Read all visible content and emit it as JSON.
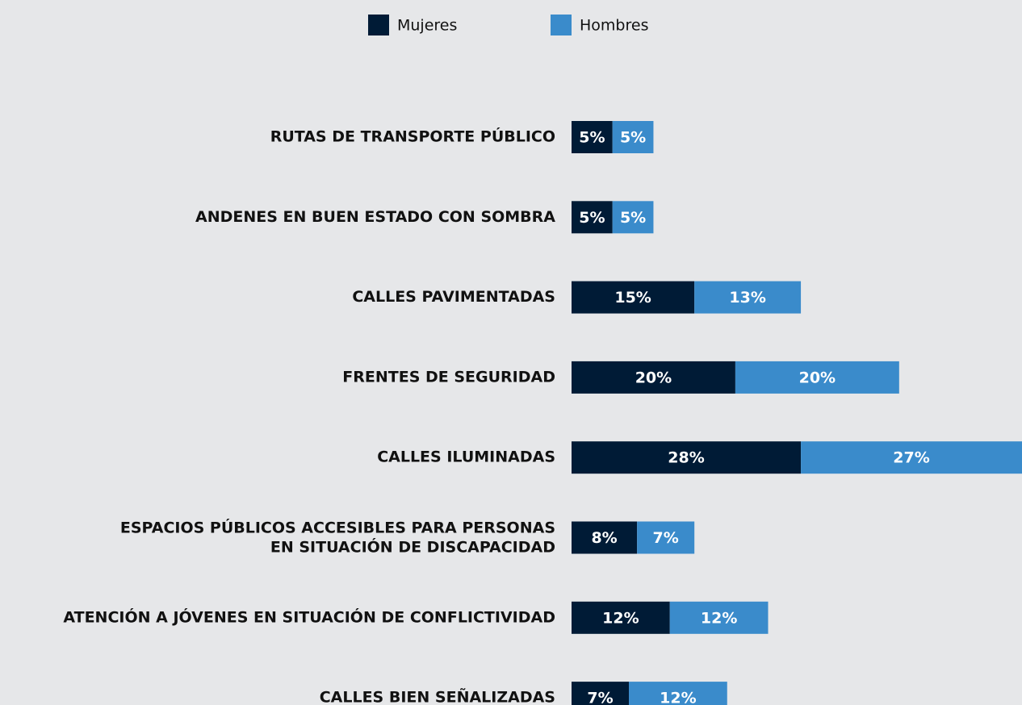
{
  "chart_data": {
    "type": "stacked-bar",
    "orientation": "horizontal",
    "categories": [
      "RUTAS DE TRANSPORTE PÚBLICO",
      "ANDENES EN BUEN ESTADO CON SOMBRA",
      "CALLES PAVIMENTADAS",
      "FRENTES DE SEGURIDAD",
      "CALLES ILUMINADAS",
      "ESPACIOS PÚBLICOS ACCESIBLES PARA PERSONAS\nEN SITUACIÓN DE DISCAPACIDAD",
      "ATENCIÓN A JÓVENES EN SITUACIÓN DE CONFLICTIVIDAD",
      "CALLES BIEN SEÑALIZADAS"
    ],
    "series": [
      {
        "name": "Mujeres",
        "color": "#001b36",
        "values": [
          5,
          5,
          15,
          20,
          28,
          8,
          12,
          7
        ],
        "value_labels": [
          "5%",
          "5%",
          "15%",
          "20%",
          "28%",
          "8%",
          "12%",
          "7%"
        ]
      },
      {
        "name": "Hombres",
        "color": "#3a8bcb",
        "values": [
          5,
          5,
          13,
          20,
          27,
          7,
          12,
          12
        ],
        "value_labels": [
          "5%",
          "5%",
          "13%",
          "20%",
          "27%",
          "7%",
          "12%",
          "12%"
        ]
      }
    ]
  }
}
